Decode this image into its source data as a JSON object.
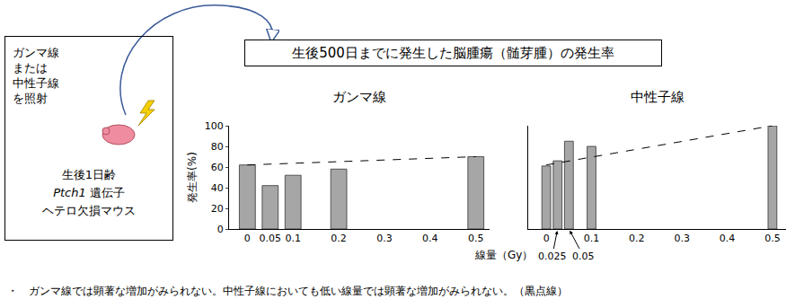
{
  "heading": "生後500日までに発生した脳腫瘍（髄芽腫）の発生率",
  "diagram": {
    "irradiation": [
      "ガンマ線",
      "または",
      "中性子線",
      "を照射"
    ],
    "mouse_age": "生後1日齢",
    "gene": "Ptch1",
    "gene_suffix": "遺伝子",
    "mouse_type": "ヘテロ欠損マウス"
  },
  "xlabel": "線量（Gy）",
  "footnote": "・　ガンマ線では顕著な増加がみられない。中性子線においても低い線量では顕著な増加がみられない。（黒点線）",
  "chart_data": [
    {
      "type": "bar",
      "title": "ガンマ線",
      "ylabel": "発生率(%)",
      "x": [
        0,
        0.05,
        0.1,
        0.2,
        0.5
      ],
      "series": [
        {
          "type": "bar",
          "color": "#a6a6a6",
          "values": [
            62,
            42,
            52,
            58,
            70
          ]
        },
        {
          "type": "line",
          "line_style": "dashed",
          "color": "#000000",
          "x": [
            0,
            0.5
          ],
          "values": [
            62,
            70
          ]
        }
      ],
      "xlim": [
        -0.04,
        0.53
      ],
      "ylim": [
        0,
        100
      ],
      "xticks": [
        0,
        0.05,
        0.1,
        0.2,
        0.3,
        0.4,
        0.5
      ],
      "yticks": [
        0,
        20,
        40,
        60,
        80,
        100
      ],
      "grid": false
    },
    {
      "type": "bar",
      "title": "中性子線",
      "x": [
        0,
        0.025,
        0.05,
        0.1,
        0.5
      ],
      "series": [
        {
          "type": "bar",
          "color": "#a6a6a6",
          "values": [
            61,
            66,
            85,
            80,
            100
          ]
        },
        {
          "type": "line",
          "line_style": "dashed",
          "color": "#000000",
          "x": [
            0,
            0.5
          ],
          "values": [
            62,
            100
          ]
        }
      ],
      "xlim": [
        -0.04,
        0.53
      ],
      "ylim": [
        0,
        100
      ],
      "xticks": [
        0,
        0.1,
        0.2,
        0.3,
        0.4,
        0.5
      ],
      "annotations": [
        {
          "text": "0.025",
          "x": 0.025
        },
        {
          "text": "0.05",
          "x": 0.05
        }
      ],
      "tick_labels": "x",
      "grid": false
    }
  ]
}
